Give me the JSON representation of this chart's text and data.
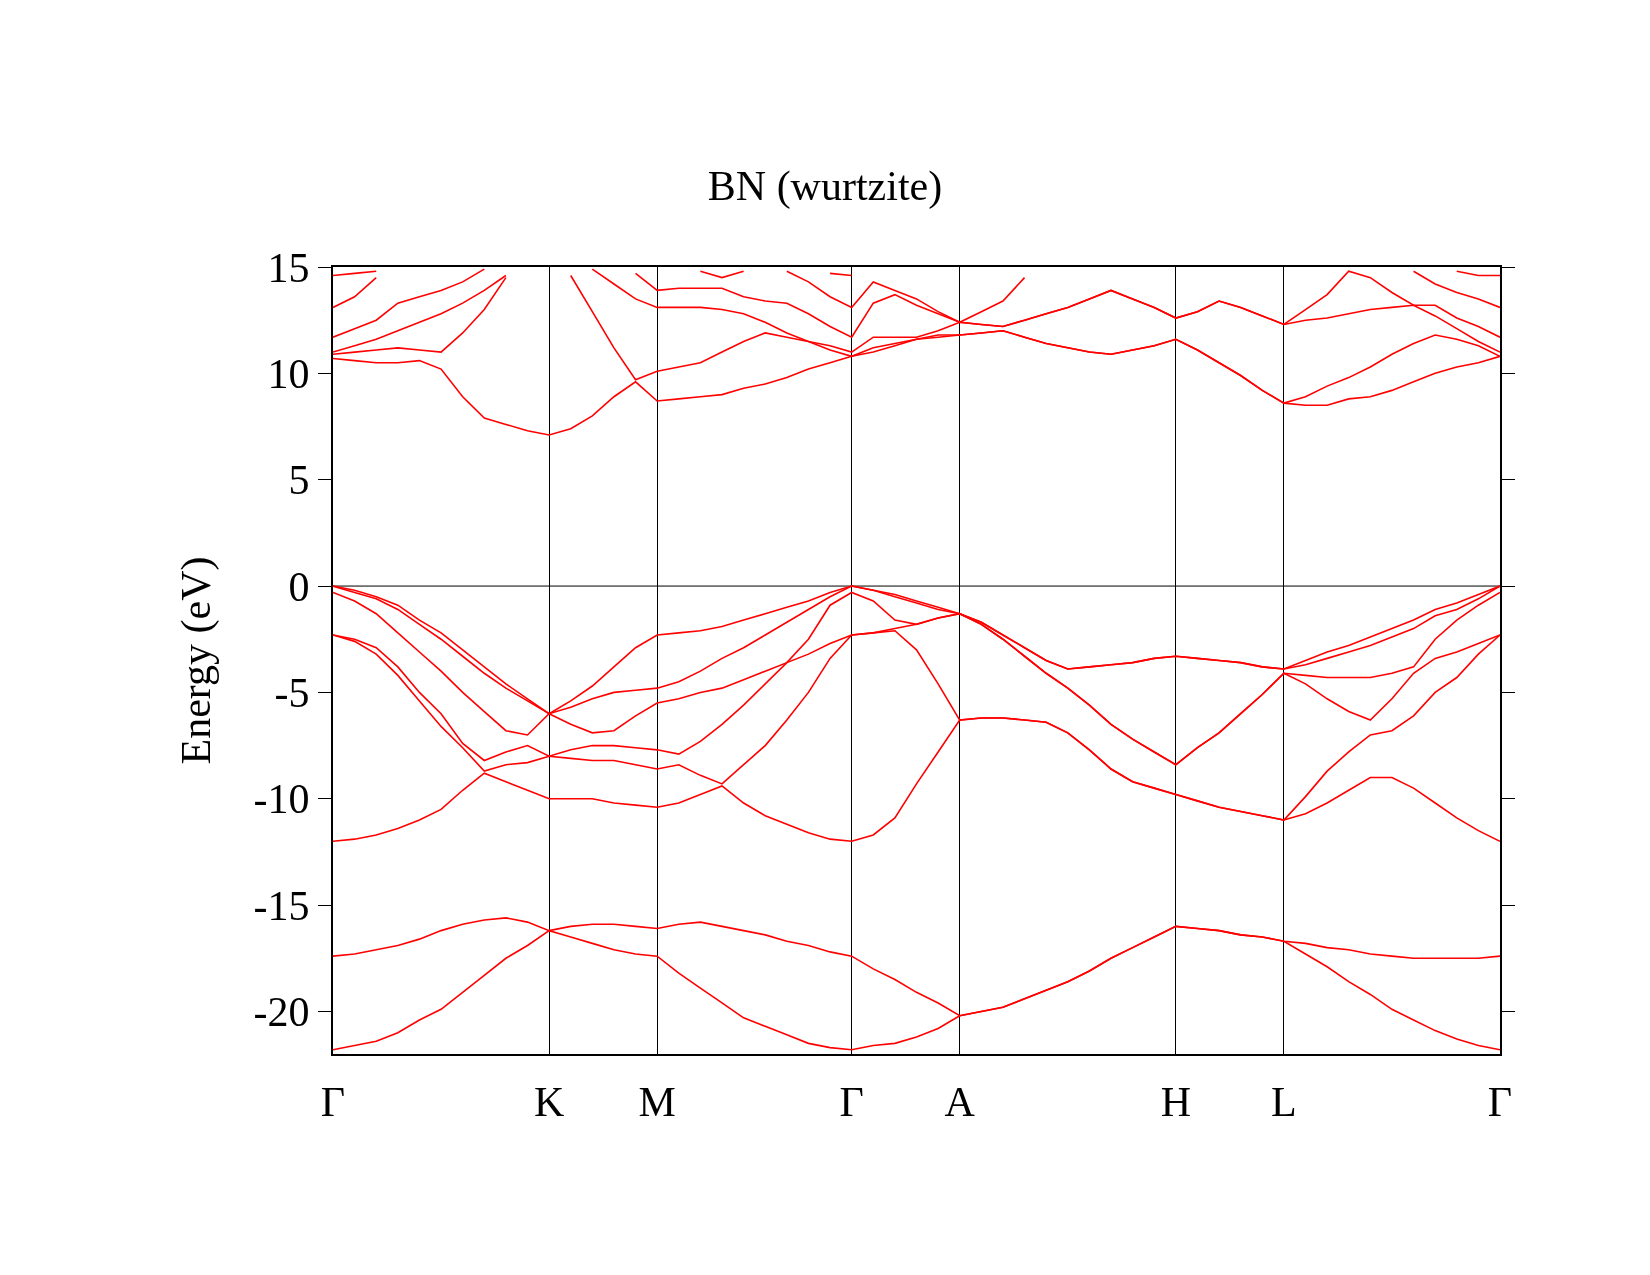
{
  "chart_data": {
    "type": "line",
    "title": "BN (wurtzite)",
    "ylabel": "Energy (eV)",
    "categories": [
      "Γ",
      null,
      null,
      null,
      null,
      null,
      null,
      null,
      null,
      null,
      "K",
      null,
      null,
      null,
      null,
      "M",
      null,
      null,
      null,
      null,
      null,
      null,
      null,
      null,
      "Γ",
      null,
      null,
      null,
      null,
      "A",
      null,
      null,
      null,
      null,
      null,
      null,
      null,
      null,
      null,
      "H",
      null,
      null,
      null,
      null,
      "L",
      null,
      null,
      null,
      null,
      null,
      null,
      null,
      null,
      null,
      "Γ"
    ],
    "ylim": [
      -22,
      15
    ],
    "yticks": [
      -20,
      -15,
      -10,
      -5,
      0,
      5,
      10,
      15
    ],
    "grid": "x",
    "line_style": "solid",
    "marker": "none",
    "ref_lines": [
      {
        "axis": "y",
        "value": 0,
        "color": "#000000"
      }
    ],
    "series": [
      {
        "color": "#ff0000",
        "values": [
          -21.8,
          -21.6,
          -21.4,
          -21.0,
          -20.4,
          -19.9,
          -19.1,
          -18.3,
          -17.5,
          -16.9,
          -16.2,
          -16.5,
          -16.8,
          -17.1,
          -17.3,
          -17.4,
          -18.2,
          -18.9,
          -19.6,
          -20.3,
          -20.7,
          -21.1,
          -21.5,
          -21.7,
          -21.8,
          -21.6,
          -21.5,
          -21.2,
          -20.8,
          -20.2,
          -20.0,
          -19.8,
          -19.4,
          -19.0,
          -18.6,
          -18.1,
          -17.5,
          -17.0,
          -16.5,
          -16.0,
          -16.1,
          -16.2,
          -16.4,
          -16.5,
          -16.7,
          -17.3,
          -17.9,
          -18.6,
          -19.2,
          -19.9,
          -20.4,
          -20.9,
          -21.3,
          -21.6,
          -21.8
        ]
      },
      {
        "color": "#ff0000",
        "values": [
          -17.4,
          -17.3,
          -17.1,
          -16.9,
          -16.6,
          -16.2,
          -15.9,
          -15.7,
          -15.6,
          -15.8,
          -16.2,
          -16.0,
          -15.9,
          -15.9,
          -16.0,
          -16.1,
          -15.9,
          -15.8,
          -16.0,
          -16.2,
          -16.4,
          -16.7,
          -16.9,
          -17.2,
          -17.4,
          -18.0,
          -18.5,
          -19.1,
          -19.6,
          -20.2,
          -20.0,
          -19.8,
          -19.4,
          -19.0,
          -18.6,
          -18.1,
          -17.5,
          -17.0,
          -16.5,
          -16.0,
          -16.1,
          -16.2,
          -16.4,
          -16.5,
          -16.7,
          -16.8,
          -17.0,
          -17.1,
          -17.3,
          -17.4,
          -17.5,
          -17.5,
          -17.5,
          -17.5,
          -17.4
        ]
      },
      {
        "color": "#ff0000",
        "values": [
          -12.0,
          -11.9,
          -11.7,
          -11.4,
          -11.0,
          -10.5,
          -9.6,
          -8.8,
          -9.2,
          -9.6,
          -10.0,
          -10.0,
          -10.0,
          -10.2,
          -10.3,
          -10.4,
          -10.2,
          -9.8,
          -9.4,
          -10.2,
          -10.8,
          -11.2,
          -11.6,
          -11.9,
          -12.0,
          -11.7,
          -10.9,
          -9.3,
          -7.8,
          -6.3,
          -6.2,
          -6.2,
          -6.3,
          -6.4,
          -6.9,
          -7.7,
          -8.6,
          -9.2,
          -9.5,
          -9.8,
          -10.1,
          -10.4,
          -10.6,
          -10.8,
          -11.0,
          -10.7,
          -10.2,
          -9.6,
          -9.0,
          -9.0,
          -9.5,
          -10.2,
          -10.9,
          -11.5,
          -12.0
        ]
      },
      {
        "color": "#ff0000",
        "values": [
          -2.3,
          -2.6,
          -3.2,
          -4.2,
          -5.4,
          -6.6,
          -7.6,
          -8.7,
          -8.4,
          -8.3,
          -8.0,
          -8.1,
          -8.2,
          -8.2,
          -8.4,
          -8.6,
          -8.4,
          -8.9,
          -9.3,
          -8.4,
          -7.5,
          -6.3,
          -5.0,
          -3.4,
          -2.3,
          -2.2,
          -2.1,
          -3.0,
          -4.6,
          -6.3,
          -6.2,
          -6.2,
          -6.3,
          -6.4,
          -6.9,
          -7.7,
          -8.6,
          -9.2,
          -9.5,
          -9.8,
          -10.1,
          -10.4,
          -10.6,
          -10.8,
          -11.0,
          -9.9,
          -8.7,
          -7.8,
          -7.0,
          -6.8,
          -6.1,
          -5.0,
          -4.3,
          -3.2,
          -2.3
        ]
      },
      {
        "color": "#ff0000",
        "values": [
          -2.3,
          -2.5,
          -2.9,
          -3.8,
          -5.0,
          -6.0,
          -7.4,
          -8.2,
          -7.8,
          -7.5,
          -8.0,
          -7.7,
          -7.5,
          -7.5,
          -7.6,
          -7.7,
          -7.9,
          -7.3,
          -6.5,
          -5.6,
          -4.6,
          -3.6,
          -3.2,
          -2.7,
          -2.3,
          -2.2,
          -2.0,
          -1.8,
          -1.5,
          -1.3,
          -1.8,
          -2.5,
          -3.3,
          -4.1,
          -4.8,
          -5.6,
          -6.5,
          -7.2,
          -7.8,
          -8.4,
          -7.6,
          -6.9,
          -6.0,
          -5.1,
          -4.1,
          -4.6,
          -5.3,
          -5.9,
          -6.3,
          -5.3,
          -4.1,
          -3.4,
          -3.1,
          -2.7,
          -2.3
        ]
      },
      {
        "color": "#ff0000",
        "values": [
          -0.3,
          -0.7,
          -1.3,
          -2.2,
          -3.1,
          -4.0,
          -5.0,
          -5.9,
          -6.8,
          -7.0,
          -6.0,
          -6.5,
          -6.9,
          -6.8,
          -6.1,
          -5.5,
          -5.3,
          -5.0,
          -4.8,
          -4.4,
          -4.0,
          -3.6,
          -2.5,
          -0.9,
          -0.3,
          -0.7,
          -1.6,
          -1.8,
          -1.5,
          -1.3,
          -1.8,
          -2.5,
          -3.3,
          -4.1,
          -4.8,
          -5.6,
          -6.5,
          -7.2,
          -7.8,
          -8.4,
          -7.6,
          -6.9,
          -6.0,
          -5.1,
          -4.1,
          -4.2,
          -4.3,
          -4.3,
          -4.3,
          -4.1,
          -3.8,
          -2.5,
          -1.6,
          -0.9,
          -0.3
        ]
      },
      {
        "color": "#ff0000",
        "values": [
          0,
          -0.3,
          -0.6,
          -1.1,
          -1.8,
          -2.5,
          -3.3,
          -4.1,
          -4.8,
          -5.4,
          -6.0,
          -5.7,
          -5.3,
          -5.0,
          -4.9,
          -4.8,
          -4.5,
          -4.0,
          -3.4,
          -2.9,
          -2.3,
          -1.7,
          -1.1,
          -0.5,
          0,
          -0.2,
          -0.5,
          -0.8,
          -1.1,
          -1.3,
          -1.7,
          -2.3,
          -2.9,
          -3.5,
          -3.9,
          -3.8,
          -3.7,
          -3.6,
          -3.4,
          -3.3,
          -3.4,
          -3.5,
          -3.6,
          -3.8,
          -3.9,
          -3.7,
          -3.4,
          -3.1,
          -2.8,
          -2.4,
          -2.0,
          -1.4,
          -1.1,
          -0.6,
          0
        ]
      },
      {
        "color": "#ff0000",
        "values": [
          0,
          -0.2,
          -0.5,
          -0.9,
          -1.6,
          -2.2,
          -3.0,
          -3.8,
          -4.6,
          -5.3,
          -6.0,
          -5.4,
          -4.7,
          -3.8,
          -2.9,
          -2.3,
          -2.2,
          -2.1,
          -1.9,
          -1.6,
          -1.3,
          -1.0,
          -0.7,
          -0.3,
          0,
          -0.2,
          -0.4,
          -0.7,
          -1.0,
          -1.3,
          -1.7,
          -2.3,
          -2.9,
          -3.5,
          -3.9,
          -3.8,
          -3.7,
          -3.6,
          -3.4,
          -3.3,
          -3.4,
          -3.5,
          -3.6,
          -3.8,
          -3.9,
          -3.5,
          -3.1,
          -2.8,
          -2.4,
          -2.0,
          -1.6,
          -1.1,
          -0.8,
          -0.4,
          0
        ]
      },
      {
        "color": "#ff0000",
        "values": [
          10.7,
          10.6,
          10.5,
          10.5,
          10.6,
          10.2,
          8.9,
          7.9,
          7.6,
          7.3,
          7.1,
          7.4,
          8.0,
          8.9,
          9.6,
          8.7,
          8.8,
          8.9,
          9.0,
          9.3,
          9.5,
          9.8,
          10.2,
          10.5,
          10.8,
          11.0,
          11.3,
          11.6,
          11.7,
          11.8,
          11.9,
          12.0,
          11.7,
          11.4,
          11.2,
          11.0,
          10.9,
          11.1,
          11.3,
          11.6,
          11.1,
          10.5,
          9.9,
          9.2,
          8.6,
          8.5,
          8.5,
          8.8,
          8.9,
          9.2,
          9.6,
          10.0,
          10.3,
          10.5,
          10.8
        ]
      },
      {
        "color": "#ff0000",
        "values": [
          10.9,
          11.0,
          11.1,
          11.2,
          11.1,
          11.0,
          11.9,
          13.0,
          14.5,
          null,
          null,
          14.6,
          12.9,
          11.2,
          9.7,
          10.1,
          10.3,
          10.5,
          11.0,
          11.5,
          11.9,
          11.7,
          11.5,
          11.1,
          10.8,
          11.2,
          11.4,
          11.6,
          11.8,
          11.8,
          11.9,
          12.0,
          11.7,
          11.4,
          11.2,
          11.0,
          10.9,
          11.1,
          11.3,
          11.6,
          11.1,
          10.5,
          9.9,
          9.2,
          8.6,
          8.9,
          9.4,
          9.8,
          10.3,
          10.9,
          11.4,
          11.8,
          11.6,
          11.3,
          10.8
        ]
      },
      {
        "color": "#ff0000",
        "values": [
          11.0,
          11.3,
          11.6,
          12.0,
          12.4,
          12.8,
          13.3,
          13.9,
          14.6,
          null,
          null,
          null,
          14.9,
          14.2,
          13.5,
          13.1,
          13.1,
          13.1,
          13.0,
          12.8,
          12.4,
          11.9,
          11.5,
          11.3,
          11.0,
          11.7,
          11.7,
          11.7,
          12.0,
          12.4,
          12.3,
          12.2,
          12.5,
          12.8,
          13.1,
          13.5,
          13.9,
          13.5,
          13.1,
          12.6,
          12.9,
          13.4,
          13.1,
          12.7,
          12.3,
          12.5,
          12.6,
          12.8,
          13.0,
          13.1,
          13.2,
          12.7,
          12.1,
          11.5,
          11.0
        ]
      },
      {
        "color": "#ff0000",
        "values": [
          11.7,
          12.1,
          12.5,
          13.3,
          13.6,
          13.9,
          14.3,
          14.9,
          null,
          null,
          null,
          null,
          null,
          null,
          14.7,
          13.9,
          14.0,
          14.0,
          14.0,
          13.6,
          13.4,
          13.3,
          12.8,
          12.2,
          11.7,
          13.3,
          13.7,
          13.2,
          12.8,
          12.4,
          12.3,
          12.2,
          12.5,
          12.8,
          13.1,
          13.5,
          13.9,
          13.5,
          13.1,
          12.6,
          12.9,
          13.4,
          13.1,
          12.7,
          12.3,
          13.0,
          13.7,
          14.8,
          14.5,
          13.8,
          13.2,
          13.2,
          12.6,
          12.2,
          11.7
        ]
      },
      {
        "color": "#ff0000",
        "values": [
          13.1,
          13.6,
          14.5,
          null,
          null,
          null,
          null,
          null,
          null,
          null,
          null,
          null,
          null,
          null,
          null,
          null,
          null,
          14.8,
          14.5,
          14.8,
          null,
          14.8,
          14.3,
          13.6,
          13.1,
          14.3,
          13.9,
          13.5,
          12.9,
          12.4,
          12.9,
          13.4,
          14.5,
          null,
          null,
          null,
          null,
          null,
          null,
          null,
          null,
          null,
          null,
          null,
          null,
          null,
          null,
          null,
          null,
          null,
          14.8,
          14.2,
          13.8,
          13.5,
          13.1
        ]
      },
      {
        "color": "#ff0000",
        "values": [
          14.6,
          14.7,
          14.8,
          null,
          null,
          null,
          null,
          null,
          null,
          null,
          null,
          null,
          null,
          null,
          null,
          null,
          null,
          null,
          null,
          null,
          null,
          null,
          null,
          14.7,
          14.6,
          null,
          null,
          null,
          null,
          null,
          null,
          null,
          null,
          null,
          null,
          null,
          null,
          null,
          null,
          null,
          null,
          null,
          null,
          null,
          null,
          null,
          null,
          null,
          null,
          null,
          null,
          null,
          14.8,
          14.6,
          14.6
        ]
      }
    ]
  }
}
